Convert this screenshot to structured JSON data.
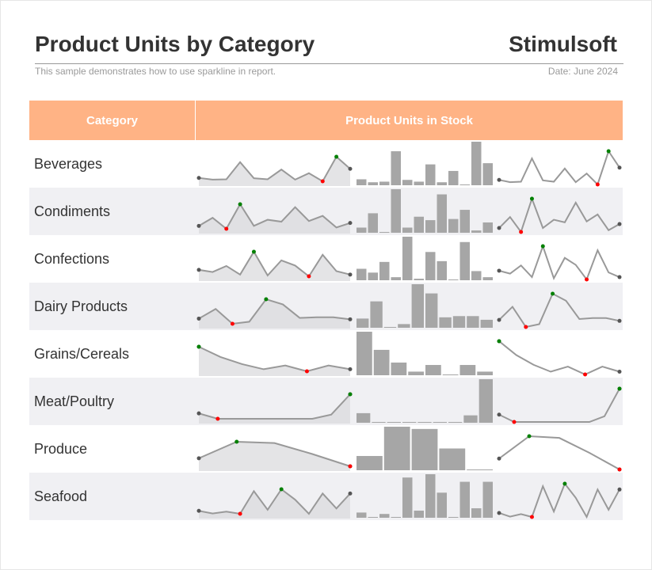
{
  "header": {
    "title": "Product Units by Category",
    "brand": "Stimulsoft",
    "subtitle": "This sample demonstrates how to use sparkline in report.",
    "date": "Date: June 2024"
  },
  "table": {
    "col_category": "Category",
    "col_units": "Product Units in Stock"
  },
  "colors": {
    "header_bg": "#ffb385",
    "alt_row_bg": "#f0f0f3",
    "line": "#999999",
    "area": "#d9d9db",
    "bar": "#a6a6a6",
    "high_point": "#008000",
    "low_point": "#ff0000",
    "end_point": "#555555"
  },
  "chart_data": {
    "type": "sparkline",
    "categories": [
      {
        "name": "Beverages",
        "values": [
          15,
          10,
          11,
          62,
          14,
          11,
          40,
          10,
          29,
          5,
          78,
          42
        ]
      },
      {
        "name": "Condiments",
        "values": [
          11,
          36,
          2,
          78,
          11,
          30,
          24,
          69,
          26,
          42,
          6,
          20
        ]
      },
      {
        "name": "Confections",
        "values": [
          22,
          17,
          31,
          11,
          64,
          9,
          44,
          32,
          7,
          57,
          19,
          11
        ]
      },
      {
        "name": "Dairy Products",
        "values": [
          20,
          48,
          5,
          11,
          76,
          61,
          22,
          24,
          24,
          18
        ]
      },
      {
        "name": "Grains/Cereals",
        "values": [
          72,
          42,
          21,
          6,
          17,
          0,
          17,
          6
        ]
      },
      {
        "name": "Meat/Poultry",
        "values": [
          22,
          0,
          0,
          0,
          0,
          0,
          0,
          17,
          100
        ]
      },
      {
        "name": "Produce",
        "values": [
          19,
          58,
          55,
          29,
          0
        ]
      },
      {
        "name": "Seafood",
        "values": [
          20,
          10,
          17,
          9,
          94,
          24,
          101,
          62,
          9,
          85,
          29,
          85
        ]
      }
    ]
  }
}
